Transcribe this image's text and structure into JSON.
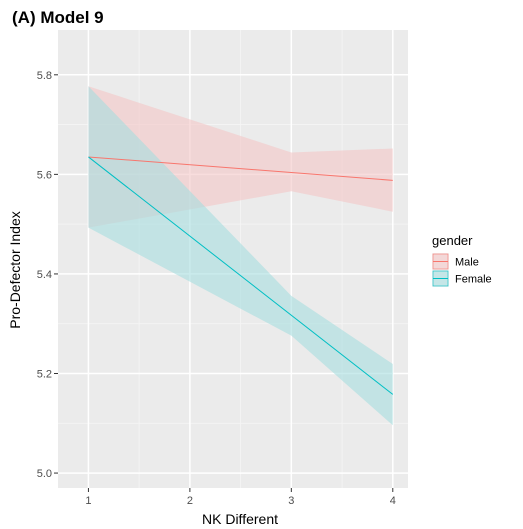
{
  "chart_data": {
    "type": "line",
    "title": "(A) Model 9",
    "xlabel": "NK Different",
    "ylabel": "Pro-Defector Index",
    "x": [
      1,
      2,
      3,
      4
    ],
    "x_ticks": [
      "1",
      "2",
      "3",
      "4"
    ],
    "y_ticks": [
      "5.0",
      "5.2",
      "5.4",
      "5.6",
      "5.8"
    ],
    "xlim": [
      0.7,
      4.15
    ],
    "ylim": [
      4.97,
      5.89
    ],
    "grid": true,
    "legend": {
      "title": "gender",
      "position": "right"
    },
    "series": [
      {
        "name": "Male",
        "color": "#F8766D",
        "fill": "#F4C7C6",
        "line": [
          [
            1,
            5.635
          ],
          [
            4,
            5.588
          ]
        ],
        "band_upper": [
          [
            1,
            5.777
          ],
          [
            3,
            5.644
          ],
          [
            4,
            5.652
          ]
        ],
        "band_lower": [
          [
            1,
            5.493
          ],
          [
            3,
            5.566
          ],
          [
            4,
            5.525
          ]
        ]
      },
      {
        "name": "Female",
        "color": "#00BFC4",
        "fill": "#A7DEE0",
        "line": [
          [
            1,
            5.635
          ],
          [
            4,
            5.158
          ]
        ],
        "band_upper": [
          [
            1,
            5.777
          ],
          [
            3,
            5.356
          ],
          [
            4,
            5.219
          ]
        ],
        "band_lower": [
          [
            1,
            5.493
          ],
          [
            3,
            5.276
          ],
          [
            4,
            5.096
          ]
        ]
      }
    ]
  }
}
